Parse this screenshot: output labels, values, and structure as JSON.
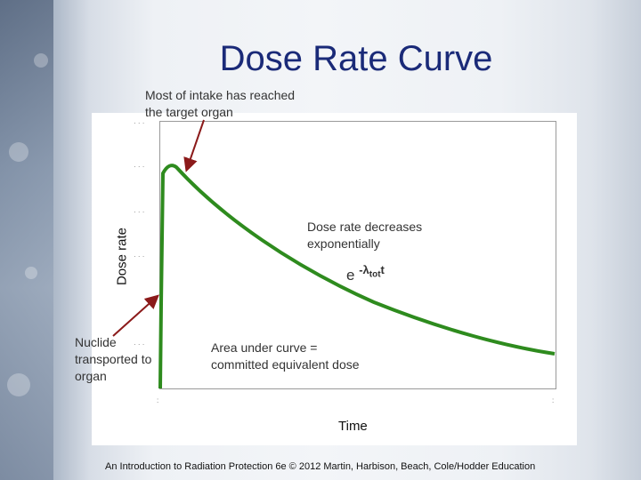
{
  "title": "Dose Rate Curve",
  "chart": {
    "ylabel": "Dose rate",
    "xlabel": "Time",
    "curve_color": "#2e8b1e",
    "arrow_color": "#8b1a1a"
  },
  "annotations": {
    "peak_line1": "Most of intake has reached",
    "peak_line2": "the target organ",
    "decay_line1": "Dose rate decreases",
    "decay_line2": "exponentially",
    "start_line1": "Nuclide",
    "start_line2": "transported to",
    "start_line3": "organ",
    "area_line1": "Area under curve =",
    "area_line2": "committed equivalent dose"
  },
  "equation": {
    "base": "e",
    "exponent": "-λ",
    "subscript": "tot",
    "variable": "t"
  },
  "footer": "An Introduction to Radiation Protection 6e © 2012 Martin, Harbison, Beach, Cole/Hodder Education"
}
